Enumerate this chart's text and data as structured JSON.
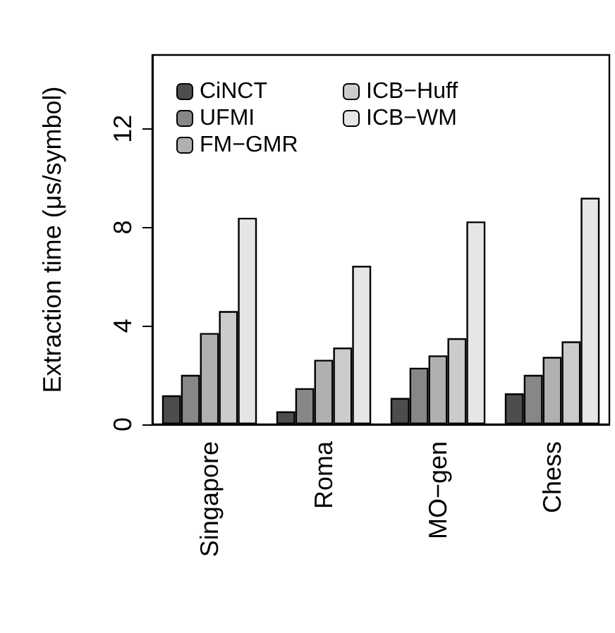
{
  "chart_data": {
    "type": "bar",
    "ylabel": "Extraction time (μs/symbol)",
    "categories": [
      "Singapore",
      "Roma",
      "MO−gen",
      "Chess"
    ],
    "series": [
      {
        "name": "CiNCT",
        "color": "#4d4d4d",
        "values": [
          1.18,
          0.53,
          1.07,
          1.26
        ]
      },
      {
        "name": "UFMI",
        "color": "#878787",
        "values": [
          2.01,
          1.47,
          2.3,
          2.01
        ]
      },
      {
        "name": "FM−GMR",
        "color": "#b0b0b0",
        "values": [
          3.71,
          2.62,
          2.8,
          2.74
        ]
      },
      {
        "name": "ICB−Huff",
        "color": "#cccccc",
        "values": [
          4.6,
          3.12,
          3.5,
          3.37
        ]
      },
      {
        "name": "ICB−WM",
        "color": "#e6e6e6",
        "values": [
          8.39,
          6.44,
          8.24,
          9.2
        ]
      }
    ],
    "ylim": [
      0,
      15
    ],
    "yticks": [
      0,
      4,
      8,
      12
    ],
    "grid": false,
    "legend": "top left"
  }
}
